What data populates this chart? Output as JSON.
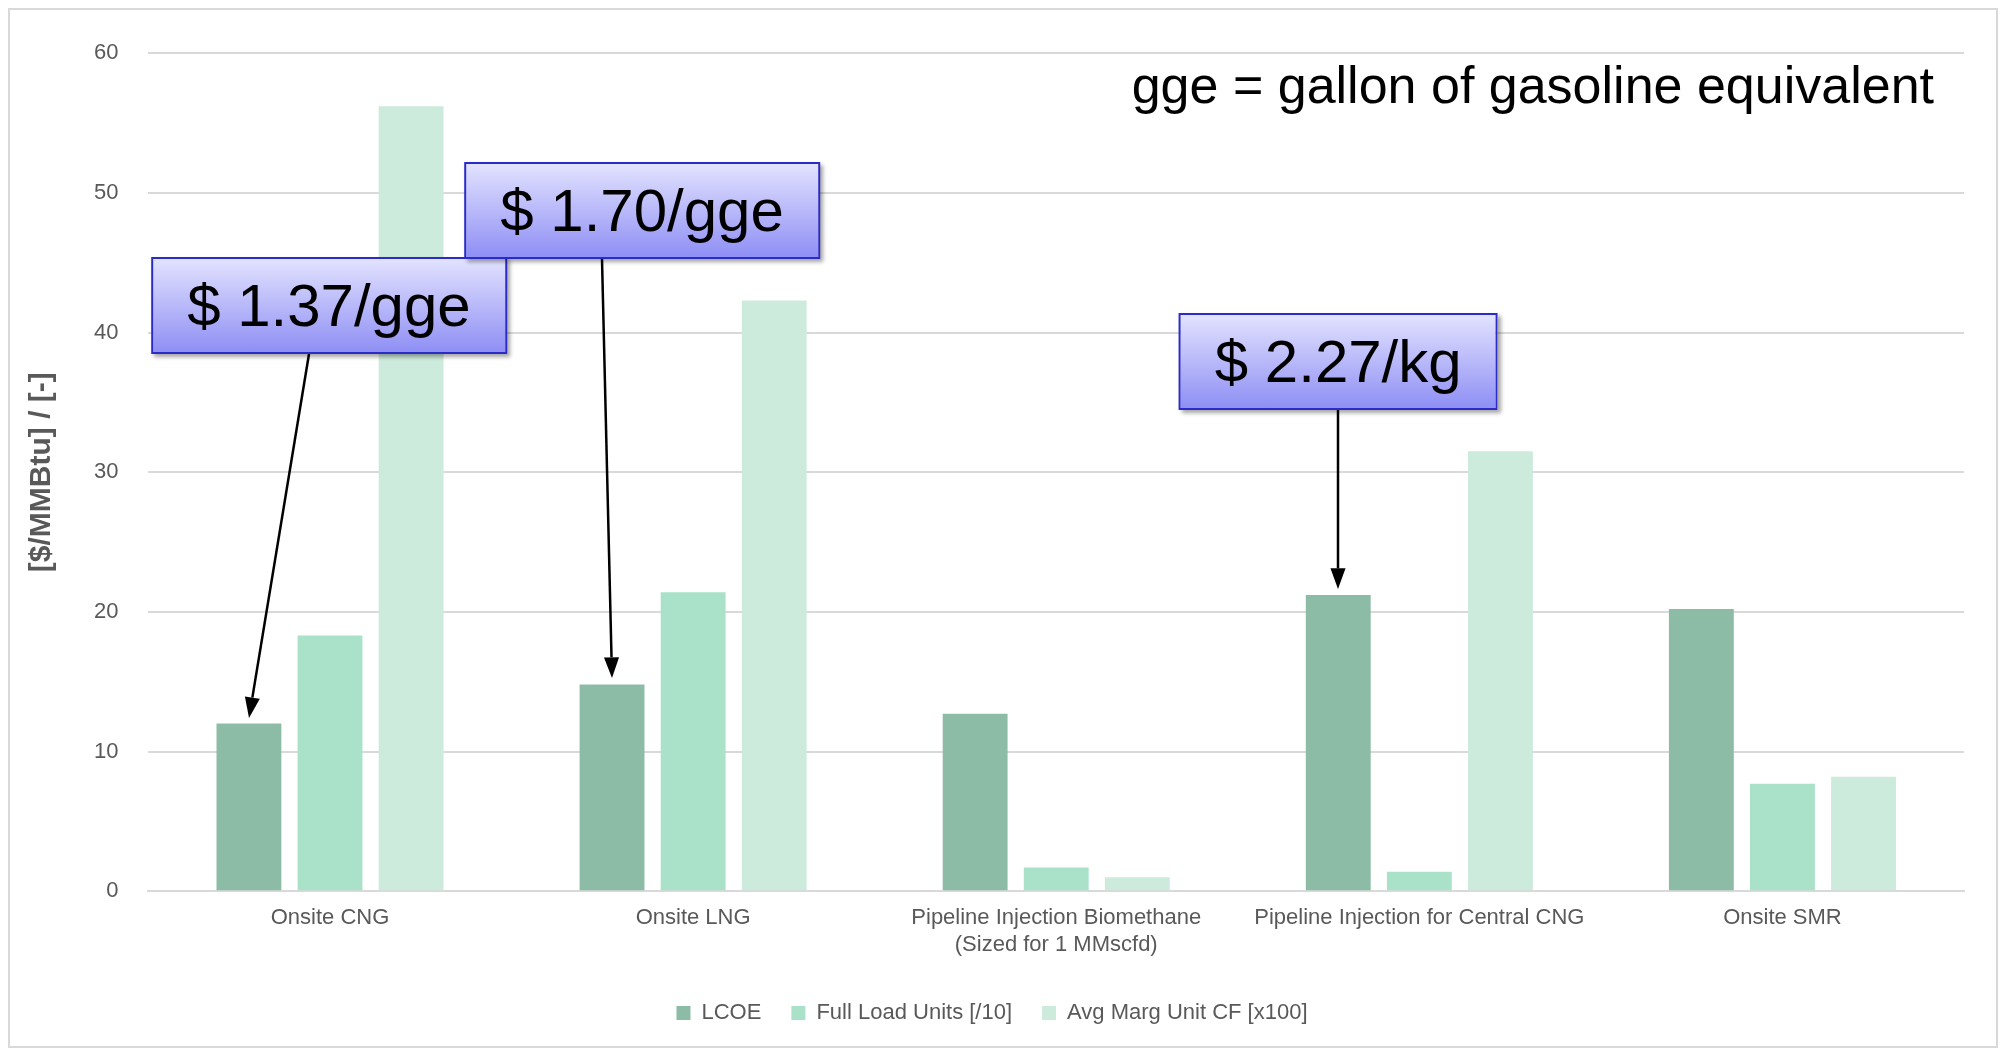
{
  "chart_data": {
    "type": "bar",
    "ylabel": "[$/MMBtu] / [-]",
    "categories": [
      "Onsite CNG",
      "Onsite LNG",
      "Pipeline Injection Biomethane\n(Sized for 1 MMscfd)",
      "Pipeline Injection for Central CNG",
      "Onsite SMR"
    ],
    "series": [
      {
        "name": "LCOE",
        "color": "#8cbca6",
        "values": [
          12.0,
          14.8,
          12.7,
          21.2,
          20.2
        ]
      },
      {
        "name": "Full Load Units [/10]",
        "color": "#a9e2c9",
        "values": [
          18.3,
          21.4,
          1.7,
          1.4,
          7.7
        ]
      },
      {
        "name": "Avg Marg Unit CF [x100]",
        "color": "#cdebdd",
        "values": [
          56.2,
          42.3,
          1.0,
          31.5,
          8.2
        ]
      }
    ],
    "ylim": [
      0,
      60
    ],
    "yticks": [
      0,
      10,
      20,
      30,
      40,
      50,
      60
    ],
    "grid": "y",
    "legend": "bottom",
    "annotations": [
      "gge = gallon of gasoline equivalent",
      "$ 1.37/gge",
      "$ 1.70/gge",
      "$ 2.27/kg"
    ]
  }
}
